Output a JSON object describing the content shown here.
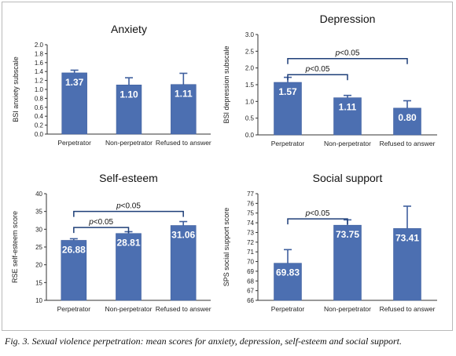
{
  "caption": "Fig. 3. Sexual violence perpetration: mean scores for anxiety, depression, self-esteem and social support.",
  "colors": {
    "bar": "#4c6fb1",
    "bar_edge": "#3f5f9e",
    "error_bar": "#3f5f9e",
    "sig_bracket": "#1e3f78",
    "axis": "#333333",
    "label_text": "#ffffff"
  },
  "chart_data": [
    {
      "type": "bar",
      "title": "Anxiety",
      "ylabel": "BSI anxiety subscale",
      "categories": [
        "Perpetrator",
        "Non-perpetrator",
        "Refused to answer"
      ],
      "values": [
        1.37,
        1.1,
        1.11
      ],
      "value_labels": [
        "1.37",
        "1.10",
        "1.11"
      ],
      "errors": [
        0.06,
        0.16,
        0.25
      ],
      "ylim": [
        0,
        2.0
      ],
      "yticks": [
        "0.0",
        "0.2",
        "0.4",
        "0.6",
        "0.8",
        "1.0",
        "1.2",
        "1.4",
        "1.6",
        "1.8",
        "2.0"
      ],
      "significance": []
    },
    {
      "type": "bar",
      "title": "Depression",
      "ylabel": "BSI depression subscale",
      "categories": [
        "Perpetrator",
        "Non-perpetrator",
        "Refused to answer"
      ],
      "values": [
        1.57,
        1.11,
        0.8
      ],
      "value_labels": [
        "1.57",
        "1.11",
        "0.80"
      ],
      "errors": [
        0.15,
        0.07,
        0.22
      ],
      "ylim": [
        0,
        3.0
      ],
      "yticks": [
        "0.0",
        "0.5",
        "1.0",
        "1.5",
        "2.0",
        "2.5",
        "3.0"
      ],
      "significance": [
        {
          "label": "p<0.05",
          "from": 0,
          "to": 2,
          "level": 2.28
        },
        {
          "label": "p<0.05",
          "from": 0,
          "to": 1,
          "level": 1.8
        }
      ]
    },
    {
      "type": "bar",
      "title": "Self-esteem",
      "ylabel": "RSE self-esteem score",
      "categories": [
        "Perpetrator",
        "Non-perpetrator",
        "Refused to answer"
      ],
      "values": [
        26.88,
        28.81,
        31.06
      ],
      "value_labels": [
        "26.88",
        "28.81",
        "31.06"
      ],
      "errors": [
        0.45,
        0.5,
        1.1
      ],
      "ylim": [
        10,
        40
      ],
      "yticks": [
        "10",
        "15",
        "20",
        "25",
        "30",
        "35",
        "40"
      ],
      "significance": [
        {
          "label": "p<0.05",
          "from": 0,
          "to": 2,
          "level": 35.0
        },
        {
          "label": "p<0.05",
          "from": 0,
          "to": 1,
          "level": 30.5
        }
      ]
    },
    {
      "type": "bar",
      "title": "Social support",
      "ylabel": "SPS social support score",
      "categories": [
        "Perpetrator",
        "Non-perpetrator",
        "Refused to answer"
      ],
      "values": [
        69.83,
        73.75,
        73.41
      ],
      "value_labels": [
        "69.83",
        "73.75",
        "73.41"
      ],
      "errors": [
        1.4,
        0.55,
        2.3
      ],
      "ylim": [
        66,
        77
      ],
      "yticks": [
        "66",
        "67",
        "68",
        "69",
        "70",
        "71",
        "72",
        "73",
        "74",
        "75",
        "76",
        "77"
      ],
      "significance": [
        {
          "label": "p<0.05",
          "from": 0,
          "to": 1,
          "level": 74.4
        }
      ]
    }
  ]
}
